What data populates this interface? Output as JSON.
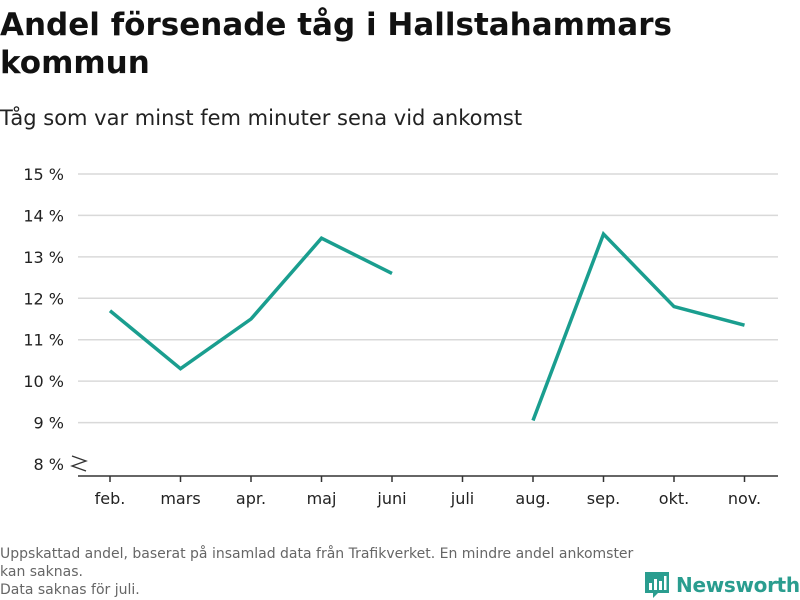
{
  "chart_data": {
    "type": "line",
    "title": "Andel försenade tåg i Hallstahammars kommun",
    "subtitle": "Tåg som var minst fem minuter sena vid ankomst",
    "categories": [
      "feb.",
      "mars",
      "apr.",
      "maj",
      "juni",
      "juli",
      "aug.",
      "sep.",
      "okt.",
      "nov."
    ],
    "series": [
      {
        "values": [
          11.7,
          10.3,
          11.5,
          13.45,
          12.6,
          null,
          9.05,
          13.55,
          11.8,
          11.35
        ]
      }
    ],
    "ylim": [
      8,
      15
    ],
    "yticks": [
      8,
      9,
      10,
      11,
      12,
      13,
      14,
      15
    ],
    "ytick_labels": [
      "8 %",
      "9 %",
      "10 %",
      "11 %",
      "12 %",
      "13 %",
      "14 %",
      "15 %"
    ],
    "axis_break": true,
    "grid": true,
    "line_color": "#1a9e8f",
    "grid_color": "#d9d9d9"
  },
  "footnotes": [
    "Uppskattad andel, baserat på insamlad data från Trafikverket. En mindre andel ankomster kan saknas.",
    "Data saknas för juli."
  ],
  "brand": {
    "name": "Newsworthy",
    "icon": "bar-chart-logo-icon",
    "color": "#2a9d8f"
  }
}
